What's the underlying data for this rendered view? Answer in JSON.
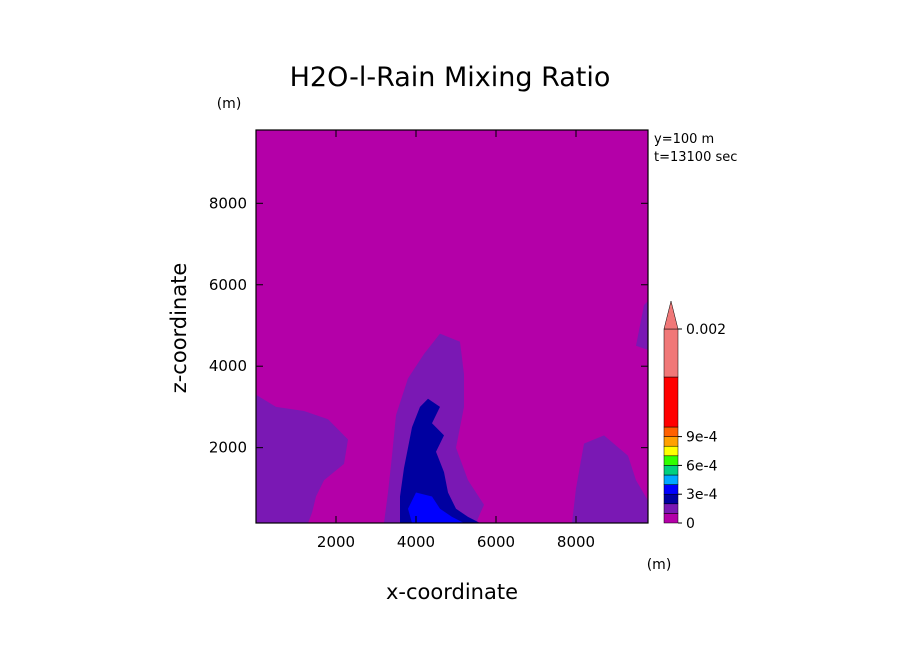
{
  "chart_data": {
    "type": "heatmap",
    "title": "H2O-l-Rain Mixing Ratio",
    "xlabel": "x-coordinate",
    "ylabel": "z-coordinate",
    "x_unit": "(m)",
    "y_unit": "(m)",
    "xlim": [
      0,
      9800
    ],
    "ylim": [
      150,
      9800
    ],
    "xticks": [
      2000,
      4000,
      6000,
      8000
    ],
    "yticks": [
      2000,
      4000,
      6000,
      8000
    ],
    "annotations": [
      "y=100 m",
      "t=13100 sec"
    ],
    "colorbar": {
      "levels": [
        0,
        0.0001,
        0.0002,
        0.0003,
        0.0004,
        0.0005,
        0.0006,
        0.0007,
        0.0008,
        0.0009,
        0.001,
        0.002
      ],
      "colors": [
        "#b400a8",
        "#7a18b4",
        "#0000a0",
        "#0000ff",
        "#00a8ff",
        "#00d080",
        "#30ff00",
        "#ffff00",
        "#ffa000",
        "#ff6000",
        "#ff0000",
        "#f07878"
      ],
      "labeled_ticks": [
        {
          "value": 0,
          "label": "0"
        },
        {
          "value": 0.0003,
          "label": "3e-4"
        },
        {
          "value": 0.0006,
          "label": "6e-4"
        },
        {
          "value": 0.0009,
          "label": "9e-4"
        },
        {
          "value": 0.002,
          "label": "0.002"
        }
      ],
      "extend": "max"
    },
    "regions": [
      {
        "name": "background",
        "level": 0,
        "points": [
          [
            0,
            150
          ],
          [
            9800,
            150
          ],
          [
            9800,
            9800
          ],
          [
            0,
            9800
          ]
        ]
      },
      {
        "name": "left-low-cloud",
        "level": 0.0001,
        "points": [
          [
            0,
            3300
          ],
          [
            500,
            3000
          ],
          [
            1200,
            2900
          ],
          [
            1800,
            2700
          ],
          [
            2300,
            2200
          ],
          [
            2200,
            1600
          ],
          [
            1700,
            1200
          ],
          [
            1500,
            800
          ],
          [
            1400,
            400
          ],
          [
            1300,
            150
          ],
          [
            0,
            150
          ]
        ]
      },
      {
        "name": "central-column",
        "level": 0.0001,
        "points": [
          [
            3200,
            150
          ],
          [
            3300,
            900
          ],
          [
            3400,
            1800
          ],
          [
            3500,
            2800
          ],
          [
            3800,
            3700
          ],
          [
            4200,
            4300
          ],
          [
            4600,
            4800
          ],
          [
            5100,
            4600
          ],
          [
            5200,
            3800
          ],
          [
            5200,
            3000
          ],
          [
            5000,
            2000
          ],
          [
            5300,
            1200
          ],
          [
            5700,
            600
          ],
          [
            5500,
            150
          ]
        ]
      },
      {
        "name": "right-low-cloud",
        "level": 0.0001,
        "points": [
          [
            7900,
            150
          ],
          [
            8000,
            1000
          ],
          [
            8200,
            2100
          ],
          [
            8700,
            2300
          ],
          [
            9300,
            1800
          ],
          [
            9500,
            1200
          ],
          [
            9800,
            700
          ],
          [
            9800,
            150
          ]
        ]
      },
      {
        "name": "right-edge-patch",
        "level": 0.0001,
        "points": [
          [
            9500,
            4500
          ],
          [
            9700,
            5500
          ],
          [
            9800,
            5600
          ],
          [
            9800,
            4400
          ]
        ]
      },
      {
        "name": "core-dark",
        "level": 0.0002,
        "points": [
          [
            3600,
            150
          ],
          [
            3600,
            800
          ],
          [
            3700,
            1500
          ],
          [
            3800,
            2000
          ],
          [
            3900,
            2500
          ],
          [
            4100,
            3000
          ],
          [
            4300,
            3200
          ],
          [
            4600,
            3000
          ],
          [
            4400,
            2600
          ],
          [
            4700,
            2300
          ],
          [
            4500,
            1900
          ],
          [
            4700,
            1400
          ],
          [
            4800,
            900
          ],
          [
            5000,
            500
          ],
          [
            5300,
            300
          ],
          [
            5600,
            150
          ]
        ]
      },
      {
        "name": "core-blue",
        "level": 0.0003,
        "points": [
          [
            3900,
            150
          ],
          [
            3800,
            500
          ],
          [
            4000,
            900
          ],
          [
            4400,
            800
          ],
          [
            4600,
            500
          ],
          [
            4900,
            300
          ],
          [
            5200,
            150
          ]
        ]
      }
    ]
  }
}
